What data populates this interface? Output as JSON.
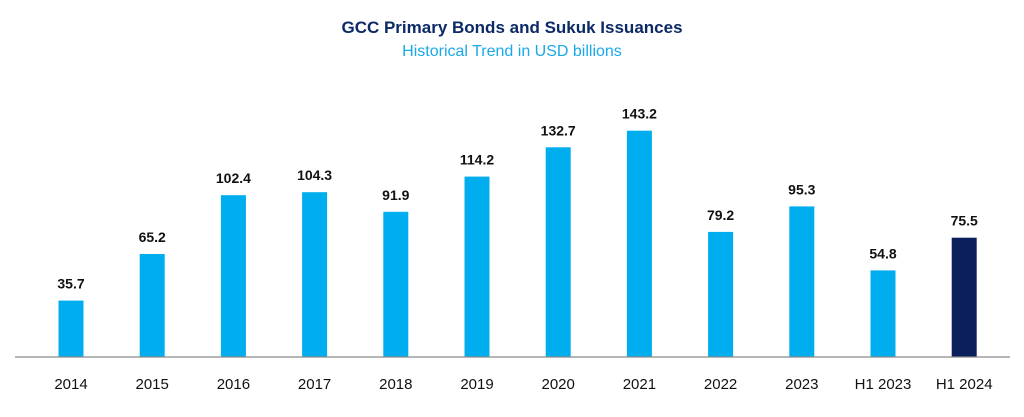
{
  "chart_data": {
    "type": "bar",
    "title": "GCC Primary Bonds and Sukuk Issuances",
    "subtitle": "Historical Trend in USD billions",
    "categories": [
      "2014",
      "2015",
      "2016",
      "2017",
      "2018",
      "2019",
      "2020",
      "2021",
      "2022",
      "2023",
      "H1 2023",
      "H1 2024"
    ],
    "values": [
      35.7,
      65.2,
      102.4,
      104.3,
      91.9,
      114.2,
      132.7,
      143.2,
      79.2,
      95.3,
      54.8,
      75.5
    ],
    "value_labels": [
      "35.7",
      "65.2",
      "102.4",
      "104.3",
      "91.9",
      "114.2",
      "132.7",
      "143.2",
      "79.2",
      "95.3",
      "54.8",
      "75.5"
    ],
    "xlabel": "",
    "ylabel": "",
    "ylim": [
      0,
      160
    ],
    "grid": false,
    "legend": "none",
    "colors": {
      "bar": "#00adef",
      "highlight": "#0b1f5c",
      "title": "#0b2a66",
      "subtitle": "#1aa9e8"
    },
    "highlight_category": "H1 2024"
  }
}
